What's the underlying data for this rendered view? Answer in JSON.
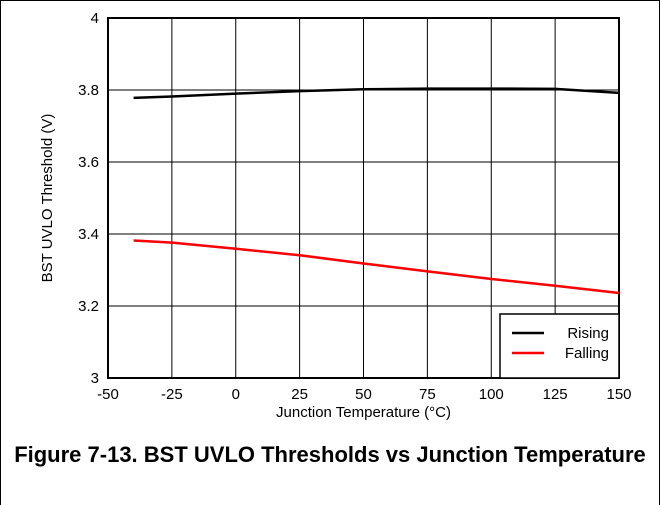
{
  "caption": "Figure 7-13. BST UVLO Thresholds vs Junction Temperature",
  "chart_data": {
    "type": "line",
    "xlabel": "Junction Temperature (°C)",
    "ylabel": "BST UVLO Threshold (V)",
    "xlim": [
      -50,
      150
    ],
    "ylim": [
      3,
      4
    ],
    "x_ticks": [
      -50,
      -25,
      0,
      25,
      50,
      75,
      100,
      125,
      150
    ],
    "x_tick_labels": [
      "-50",
      "-25",
      "0",
      "25",
      "50",
      "75",
      "100",
      "125",
      "150"
    ],
    "y_ticks": [
      3,
      3.2,
      3.4,
      3.6,
      3.8,
      4
    ],
    "y_tick_labels": [
      "3",
      "3.2",
      "3.4",
      "3.6",
      "3.8",
      "4"
    ],
    "grid": true,
    "legend_position": "bottom-right",
    "series": [
      {
        "name": "Rising",
        "color": "#000000",
        "x": [
          -40,
          -25,
          0,
          25,
          50,
          75,
          100,
          125,
          150
        ],
        "y": [
          3.778,
          3.782,
          3.79,
          3.797,
          3.802,
          3.804,
          3.804,
          3.803,
          3.792
        ]
      },
      {
        "name": "Falling",
        "color": "#ff0000",
        "x": [
          -40,
          -25,
          0,
          25,
          50,
          75,
          100,
          125,
          150
        ],
        "y": [
          3.382,
          3.376,
          3.359,
          3.341,
          3.318,
          3.296,
          3.275,
          3.256,
          3.236
        ]
      }
    ]
  }
}
